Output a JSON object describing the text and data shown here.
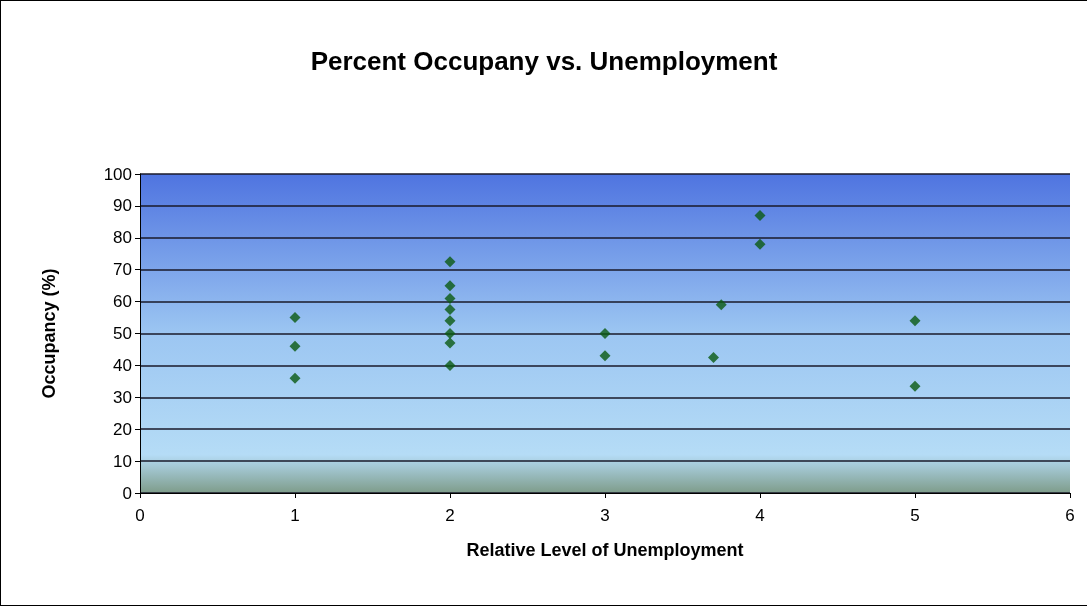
{
  "chart_data": {
    "type": "scatter",
    "title": "Percent Occupany vs. Unemployment",
    "xlabel": "Relative Level of Unemployment",
    "ylabel": "Occupancy (%)",
    "x": [
      1,
      1,
      1,
      2,
      2,
      2,
      2,
      2,
      2,
      2,
      2,
      3,
      3,
      3.7,
      3.75,
      4,
      4,
      5,
      5
    ],
    "values": [
      55,
      46,
      36,
      72.5,
      65,
      61,
      57.5,
      54,
      50,
      47,
      40,
      50,
      43,
      42.5,
      59,
      87,
      78,
      54,
      33.5
    ],
    "color": "#0b5a12",
    "marker": "diamond",
    "xlim": [
      0,
      6
    ],
    "xticks": [
      0,
      1,
      2,
      3,
      4,
      5,
      6
    ],
    "ylim": [
      0,
      100
    ],
    "yticks": [
      0,
      10,
      20,
      30,
      40,
      50,
      60,
      70,
      80,
      90,
      100
    ],
    "grid": "y"
  }
}
